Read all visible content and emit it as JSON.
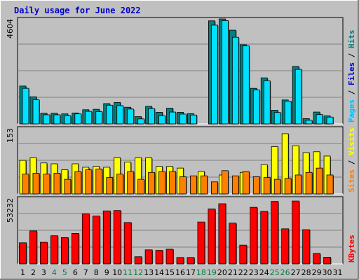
{
  "chart_data": {
    "type": "bar",
    "title": "Daily usage for June 2022",
    "days": [
      "1",
      "2",
      "3",
      "4",
      "5",
      "6",
      "7",
      "8",
      "9",
      "10",
      "11",
      "12",
      "13",
      "14",
      "15",
      "16",
      "17",
      "18",
      "19",
      "20",
      "21",
      "22",
      "23",
      "24",
      "25",
      "26",
      "27",
      "28",
      "29",
      "30",
      "31"
    ],
    "weekend_days": [
      "4",
      "5",
      "11",
      "12",
      "18",
      "19",
      "25",
      "26"
    ],
    "colors": {
      "pages": "#008080",
      "files": "#00c0ff",
      "hits_bar": "#00e0ff",
      "visits": "#ffff00",
      "sites": "#ff8000",
      "kbytes": "#ff0000",
      "weekday_label": "#000000",
      "weekend_label": "#008040"
    },
    "panels": [
      {
        "name": "hits",
        "ymax": 4604,
        "ymax_label": "4604",
        "side_label": [
          "Pages",
          "Files",
          "Hits"
        ],
        "side_colors": [
          "#00c0ff",
          "#0000cc",
          "#008080"
        ],
        "series": [
          {
            "name": "Pages",
            "color": "#008080",
            "values": [
              1660,
              1190,
              470,
              470,
              440,
              480,
              620,
              640,
              890,
              940,
              730,
              320,
              770,
              510,
              690,
              510,
              450,
              0,
              4520,
              4630,
              4110,
              3470,
              1560,
              2020,
              600,
              1050,
              2520,
              230,
              520,
              350,
              0
            ]
          },
          {
            "name": "Files",
            "color": "#00e0ff",
            "values": [
              1560,
              1060,
              400,
              400,
              360,
              440,
              550,
              540,
              820,
              800,
              650,
              220,
              670,
              360,
              520,
              430,
              390,
              0,
              4330,
              4530,
              3800,
              3420,
              1490,
              1890,
              500,
              1000,
              2390,
              160,
              410,
              300,
              0
            ]
          }
        ]
      },
      {
        "name": "visits",
        "ymax": 153,
        "ymax_label": "153",
        "side_label": [
          "Sites",
          "Visits"
        ],
        "side_colors": [
          "#ff8000",
          "#ffff00"
        ],
        "series": [
          {
            "name": "Visits",
            "color": "#ffff00",
            "values": [
              78,
              84,
              72,
              70,
              56,
              70,
              62,
              64,
              62,
              84,
              74,
              84,
              84,
              64,
              64,
              60,
              0,
              52,
              0,
              44,
              0,
              50,
              0,
              68,
              110,
              140,
              112,
              96,
              98,
              88,
              0
            ]
          },
          {
            "name": "Sites",
            "color": "#ff8000",
            "values": [
              46,
              48,
              46,
              48,
              34,
              52,
              56,
              58,
              38,
              46,
              52,
              34,
              50,
              52,
              52,
              40,
              42,
              42,
              28,
              54,
              42,
              52,
              40,
              38,
              34,
              36,
              44,
              50,
              60,
              44,
              0
            ]
          }
        ]
      },
      {
        "name": "kbytes",
        "ymax": 53232,
        "ymax_label": "53232",
        "side_label": [
          "KBytes"
        ],
        "side_colors": [
          "#ff0000"
        ],
        "series": [
          {
            "name": "KBytes",
            "color": "#ff0000",
            "values": [
              17100,
              26700,
              17500,
              22800,
              21300,
              24700,
              40400,
              38700,
              42900,
              43200,
              33500,
              5800,
              11400,
              11000,
              11900,
              5200,
              5200,
              33900,
              44500,
              48700,
              33000,
              15200,
              45800,
              42500,
              50600,
              28400,
              50900,
              27700,
              8400,
              5400,
              0
            ]
          }
        ]
      }
    ]
  }
}
